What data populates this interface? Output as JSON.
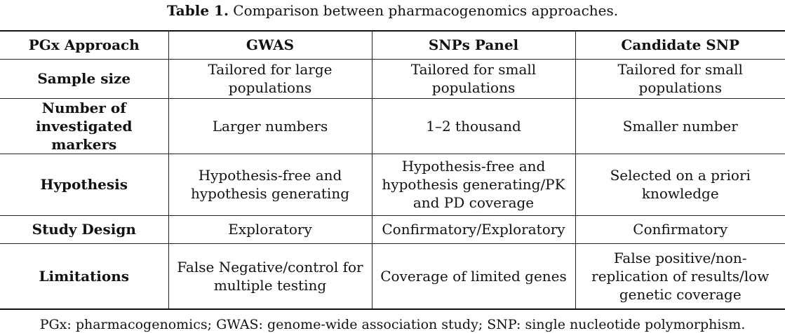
{
  "caption": {
    "label": "Table 1.",
    "text": "Comparison between pharmacogenomics approaches."
  },
  "table": {
    "headers": [
      "PGx Approach",
      "GWAS",
      "SNPs Panel",
      "Candidate SNP"
    ],
    "rows": [
      {
        "label": "Sample size",
        "cells": [
          "Tailored for large populations",
          "Tailored for small populations",
          "Tailored for small populations"
        ]
      },
      {
        "label": "Number of investigated markers",
        "cells": [
          "Larger numbers",
          "1–2 thousand",
          "Smaller number"
        ]
      },
      {
        "label": "Hypothesis",
        "cells": [
          "Hypothesis-free and hypothesis generating",
          "Hypothesis-free and hypothesis generating/PK and PD coverage",
          "Selected on a priori knowledge"
        ]
      },
      {
        "label": "Study Design",
        "cells": [
          "Exploratory",
          "Confirmatory/Exploratory",
          "Confirmatory"
        ]
      },
      {
        "label": "Limitations",
        "cells": [
          "False Negative/control for multiple testing",
          "Coverage of limited genes",
          "False positive/non-replication of results/low genetic coverage"
        ]
      }
    ]
  },
  "footnote": "PGx: pharmacogenomics; GWAS: genome-wide association study; SNP: single nucleotide polymorphism."
}
